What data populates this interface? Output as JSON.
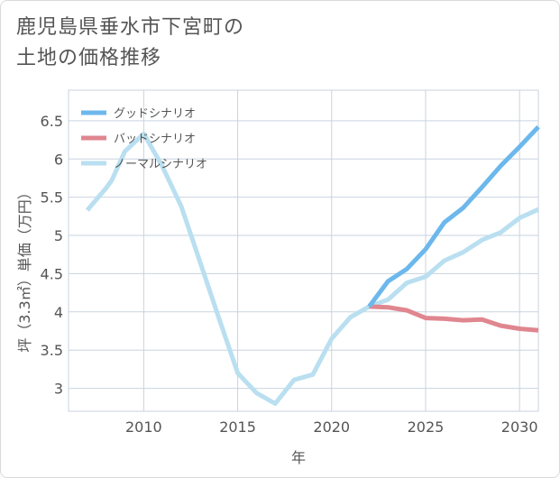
{
  "title_lines": [
    "鹿児島県垂水市下宮町の",
    "土地の価格推移"
  ],
  "chart_data": {
    "type": "line",
    "xlabel": "年",
    "ylabel": "坪（3.3㎡）単価（万円）",
    "xlim": [
      2006,
      2031
    ],
    "ylim": [
      2.7,
      6.9
    ],
    "x_ticks": [
      2010,
      2015,
      2020,
      2025,
      2030
    ],
    "y_ticks": [
      3,
      3.5,
      4,
      4.5,
      5,
      5.5,
      6,
      6.5
    ],
    "y_tick_labels": [
      "3",
      "3.5",
      "4",
      "4.5",
      "5",
      "5.5",
      "6",
      "6.5"
    ],
    "grid": true,
    "legend_position": "top-left",
    "series": [
      {
        "name": "グッドシナリオ",
        "color": "#6cb8ec",
        "x": [
          2022,
          2023,
          2024,
          2025,
          2026,
          2027,
          2028,
          2029,
          2030,
          2031
        ],
        "values": [
          4.07,
          4.4,
          4.56,
          4.82,
          5.17,
          5.36,
          5.63,
          5.91,
          6.16,
          6.42
        ]
      },
      {
        "name": "バッドシナリオ",
        "color": "#e0868f",
        "x": [
          2022,
          2023,
          2024,
          2025,
          2026,
          2027,
          2028,
          2029,
          2030,
          2031
        ],
        "values": [
          4.07,
          4.06,
          4.02,
          3.92,
          3.91,
          3.89,
          3.9,
          3.82,
          3.78,
          3.76
        ]
      },
      {
        "name": "ノーマルシナリオ",
        "color": "#b9dff0",
        "x": [
          2007,
          2008,
          2008.3,
          2009,
          2010,
          2011,
          2012,
          2013,
          2014,
          2015,
          2016,
          2017,
          2018,
          2019,
          2020,
          2021,
          2022,
          2023,
          2024,
          2025,
          2026,
          2027,
          2028,
          2029,
          2030,
          2031
        ],
        "values": [
          5.33,
          5.62,
          5.72,
          6.1,
          6.33,
          5.9,
          5.38,
          4.65,
          3.92,
          3.2,
          2.94,
          2.8,
          3.11,
          3.18,
          3.65,
          3.93,
          4.07,
          4.16,
          4.38,
          4.46,
          4.67,
          4.78,
          4.94,
          5.04,
          5.23,
          5.34
        ]
      }
    ]
  }
}
